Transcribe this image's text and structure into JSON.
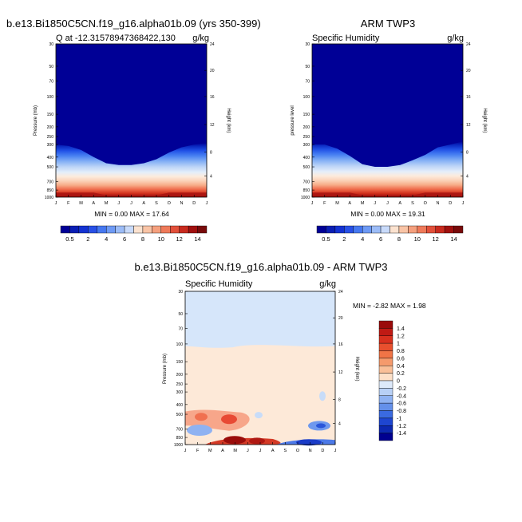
{
  "panels": [
    {
      "title": "b.e13.Bi1850C5CN.f19_g16.alpha01b.09 (yrs 350-399)",
      "left_label": "Q at -12.31578947368422,130",
      "units": "g/kg",
      "ylabel_left": "Pressure (mb)",
      "ylabel_right": "Height (km)",
      "stats": "MIN =   0.00 MAX =  17.64"
    },
    {
      "title": "ARM TWP3",
      "left_label": "Specific Humidity",
      "units": "g/kg",
      "ylabel_left": "pressure level",
      "ylabel_right": "Height (km)",
      "stats": "MIN =   0.00 MAX =  19.31"
    },
    {
      "title": "b.e13.Bi1850C5CN.f19_g16.alpha01b.09 - ARM TWP3",
      "left_label": "Specific Humidity",
      "units": "g/kg",
      "ylabel_left": "Pressure (mb)",
      "ylabel_right": "Height (km)",
      "stats": "MIN =  -2.82 MAX =   1.98"
    }
  ],
  "chart_data": [
    {
      "type": "heatmap",
      "title": "b.e13.Bi1850C5CN.f19_g16.alpha01b.09 (yrs 350-399)",
      "subtitle": "Q at -12.31578947368422,130",
      "units": "g/kg",
      "x_ticks": [
        "J",
        "F",
        "M",
        "A",
        "M",
        "J",
        "J",
        "A",
        "S",
        "O",
        "N",
        "D",
        "J"
      ],
      "y_ticks": [
        "30",
        "50",
        "70",
        "100",
        "150",
        "200",
        "250",
        "300",
        "400",
        "500",
        "700",
        "850",
        "1000"
      ],
      "y_right_ticks": [
        "24",
        "20",
        "16",
        "12",
        "8",
        "4"
      ],
      "ylim": [
        1000,
        30
      ],
      "min": 0.0,
      "max": 17.64,
      "colorbar_labels": [
        "0.5",
        "2",
        "4",
        "6",
        "8",
        "10",
        "12",
        "14"
      ],
      "moisture_top_pressure_by_month": [
        300,
        310,
        340,
        400,
        460,
        480,
        480,
        460,
        420,
        360,
        320,
        300,
        290
      ]
    },
    {
      "type": "heatmap",
      "title": "ARM TWP3",
      "subtitle": "Specific Humidity",
      "units": "g/kg",
      "x_ticks": [
        "J",
        "F",
        "M",
        "A",
        "M",
        "J",
        "J",
        "A",
        "S",
        "O",
        "N",
        "D",
        "J"
      ],
      "y_ticks": [
        "30",
        "50",
        "70",
        "100",
        "150",
        "200",
        "250",
        "300",
        "400",
        "500",
        "700",
        "850",
        "1000"
      ],
      "y_right_ticks": [
        "24",
        "20",
        "16",
        "12",
        "8",
        "4"
      ],
      "ylim": [
        1000,
        30
      ],
      "min": 0.0,
      "max": 19.31,
      "colorbar_labels": [
        "0.5",
        "2",
        "4",
        "6",
        "8",
        "10",
        "12",
        "14"
      ],
      "moisture_top_pressure_by_month": [
        300,
        300,
        330,
        390,
        470,
        500,
        500,
        480,
        430,
        380,
        320,
        300,
        280
      ]
    },
    {
      "type": "heatmap",
      "title": "b.e13.Bi1850C5CN.f19_g16.alpha01b.09 - ARM TWP3",
      "subtitle": "Specific Humidity",
      "units": "g/kg",
      "x_ticks": [
        "J",
        "F",
        "M",
        "A",
        "M",
        "J",
        "J",
        "A",
        "S",
        "O",
        "N",
        "D",
        "J"
      ],
      "y_ticks": [
        "30",
        "50",
        "70",
        "100",
        "150",
        "200",
        "250",
        "300",
        "400",
        "500",
        "700",
        "850",
        "1000"
      ],
      "y_right_ticks": [
        "24",
        "20",
        "16",
        "12",
        "8",
        "4"
      ],
      "ylim": [
        1000,
        30
      ],
      "min": -2.82,
      "max": 1.98,
      "colorbar_labels": [
        "1.4",
        "1.2",
        "1",
        "0.8",
        "0.6",
        "0.4",
        "0.2",
        "0",
        "-0.2",
        "-0.4",
        "-0.6",
        "-0.8",
        "-1",
        "-1.2",
        "-1.4"
      ]
    }
  ]
}
